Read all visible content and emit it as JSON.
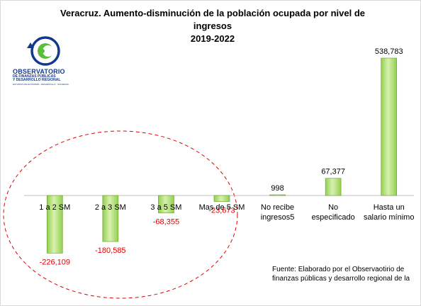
{
  "chart_data": {
    "type": "bar",
    "title_line1": "Veracruz. Aumento-disminución de la población ocupada por nivel de ingresos",
    "title_line2": "2019-2022",
    "categories": [
      [
        "1 a 2 SM"
      ],
      [
        "2 a 3 SM"
      ],
      [
        "3 a 5 SM"
      ],
      [
        "Mas de 5 SM"
      ],
      [
        "No recibe",
        "ingresos5"
      ],
      [
        "No",
        "especificado"
      ],
      [
        "Hasta un",
        "salario mínimo"
      ]
    ],
    "values": [
      -226109,
      -180585,
      -68355,
      -23673,
      998,
      67377,
      538783
    ],
    "value_labels": [
      "-226,109",
      "-180,585",
      "-68,355",
      "-23,673",
      "998",
      "67,377",
      "538,783"
    ],
    "negative_label_color": "#e00000",
    "positive_label_color": "#000000",
    "bar_color": "#92d050",
    "bar_highlight": "#d9f0b0",
    "bar_border": "#6a9a2a",
    "highlight_ellipse_color": "#e00000",
    "ylim": [
      -260000,
      560000
    ],
    "xlabel": "",
    "ylabel": "",
    "grid": false,
    "legend": "none"
  },
  "logo": {
    "line1": "OBSERVATORIO",
    "line2": "DE FINANZAS PÚBLICAS",
    "line3": "Y DESARROLLO REGIONAL",
    "line4": "ESTUDIOS DE ECONOMÍA · DESARROLLO · SOCIEDAD",
    "color_primary": "#123a8c",
    "color_accent": "#5cbf3c"
  },
  "source": {
    "line1": "Fuente: Elaborado por el Observaotirio de",
    "line2": "finanzas públicas y desarrollo regional de la"
  }
}
